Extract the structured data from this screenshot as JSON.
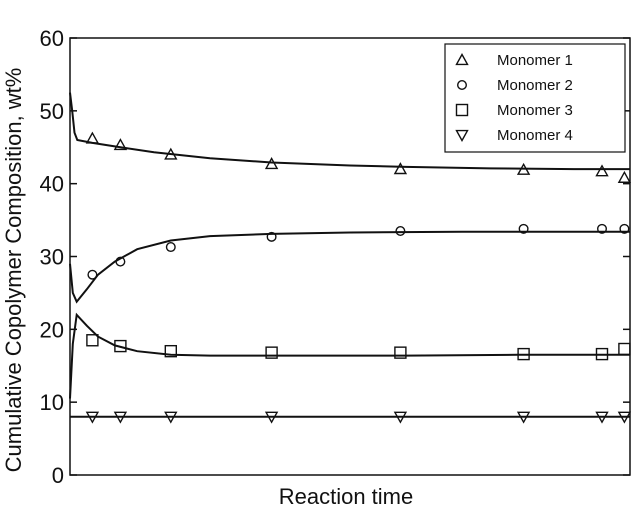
{
  "chart_data": {
    "type": "line",
    "xlabel": "Reaction time",
    "ylabel": "Cumulative Copolymer Composition, wt%",
    "xlim": [
      0,
      1
    ],
    "ylim": [
      0,
      60
    ],
    "yticks": [
      0,
      10,
      20,
      30,
      40,
      50,
      60
    ],
    "grid": false,
    "legend_position": "top-right",
    "series": [
      {
        "name": "Monomer 1",
        "marker": "triangle-up",
        "points": [
          [
            0.04,
            46.2
          ],
          [
            0.09,
            45.3
          ],
          [
            0.18,
            44.0
          ],
          [
            0.36,
            42.7
          ],
          [
            0.59,
            42.0
          ],
          [
            0.81,
            41.9
          ],
          [
            0.95,
            41.7
          ],
          [
            0.99,
            40.8
          ]
        ],
        "curve": [
          [
            0.0,
            52.5
          ],
          [
            0.004,
            50.0
          ],
          [
            0.008,
            47.0
          ],
          [
            0.013,
            46.0
          ],
          [
            0.04,
            45.6
          ],
          [
            0.09,
            45.0
          ],
          [
            0.15,
            44.3
          ],
          [
            0.25,
            43.5
          ],
          [
            0.36,
            42.9
          ],
          [
            0.5,
            42.5
          ],
          [
            0.6,
            42.3
          ],
          [
            0.75,
            42.1
          ],
          [
            0.9,
            42.0
          ],
          [
            1.0,
            42.0
          ]
        ]
      },
      {
        "name": "Monomer 2",
        "marker": "circle",
        "points": [
          [
            0.04,
            27.5
          ],
          [
            0.09,
            29.3
          ],
          [
            0.18,
            31.3
          ],
          [
            0.36,
            32.7
          ],
          [
            0.59,
            33.5
          ],
          [
            0.81,
            33.8
          ],
          [
            0.95,
            33.8
          ],
          [
            0.99,
            33.8
          ]
        ],
        "curve": [
          [
            0.0,
            29.0
          ],
          [
            0.005,
            25.0
          ],
          [
            0.012,
            23.8
          ],
          [
            0.03,
            25.5
          ],
          [
            0.05,
            27.5
          ],
          [
            0.08,
            29.3
          ],
          [
            0.12,
            31.0
          ],
          [
            0.18,
            32.2
          ],
          [
            0.25,
            32.8
          ],
          [
            0.36,
            33.1
          ],
          [
            0.5,
            33.3
          ],
          [
            0.7,
            33.4
          ],
          [
            1.0,
            33.4
          ]
        ]
      },
      {
        "name": "Monomer 3",
        "marker": "square",
        "points": [
          [
            0.04,
            18.5
          ],
          [
            0.09,
            17.7
          ],
          [
            0.18,
            17.0
          ],
          [
            0.36,
            16.8
          ],
          [
            0.59,
            16.8
          ],
          [
            0.81,
            16.6
          ],
          [
            0.95,
            16.6
          ],
          [
            0.99,
            17.3
          ]
        ],
        "curve": [
          [
            0.0,
            10.5
          ],
          [
            0.005,
            18.0
          ],
          [
            0.012,
            22.0
          ],
          [
            0.03,
            20.5
          ],
          [
            0.05,
            19.0
          ],
          [
            0.08,
            17.8
          ],
          [
            0.12,
            17.0
          ],
          [
            0.18,
            16.5
          ],
          [
            0.25,
            16.4
          ],
          [
            0.4,
            16.4
          ],
          [
            0.6,
            16.4
          ],
          [
            0.8,
            16.5
          ],
          [
            1.0,
            16.5
          ]
        ]
      },
      {
        "name": "Monomer 4",
        "marker": "triangle-down",
        "points": [
          [
            0.04,
            8.0
          ],
          [
            0.09,
            8.0
          ],
          [
            0.18,
            8.0
          ],
          [
            0.36,
            8.0
          ],
          [
            0.59,
            8.0
          ],
          [
            0.81,
            8.0
          ],
          [
            0.95,
            8.0
          ],
          [
            0.99,
            8.0
          ]
        ],
        "curve": [
          [
            0.0,
            8.0
          ],
          [
            1.0,
            8.0
          ]
        ]
      }
    ]
  }
}
